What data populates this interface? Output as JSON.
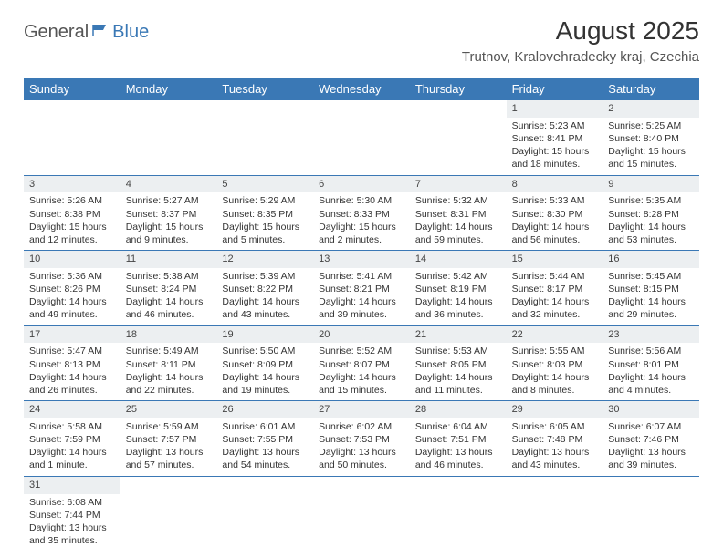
{
  "logo": {
    "part1": "General",
    "part2": "Blue"
  },
  "title": "August 2025",
  "location": "Trutnov, Kralovehradecky kraj, Czechia",
  "colors": {
    "header_bg": "#3a78b5",
    "header_text": "#ffffff",
    "daynum_bg": "#eceff1",
    "border": "#3a78b5",
    "text": "#333333",
    "logo_gray": "#555555",
    "logo_blue": "#3a78b5",
    "background": "#ffffff"
  },
  "dayNames": [
    "Sunday",
    "Monday",
    "Tuesday",
    "Wednesday",
    "Thursday",
    "Friday",
    "Saturday"
  ],
  "weeks": [
    [
      null,
      null,
      null,
      null,
      null,
      {
        "n": "1",
        "sr": "Sunrise: 5:23 AM",
        "ss": "Sunset: 8:41 PM",
        "d1": "Daylight: 15 hours",
        "d2": "and 18 minutes."
      },
      {
        "n": "2",
        "sr": "Sunrise: 5:25 AM",
        "ss": "Sunset: 8:40 PM",
        "d1": "Daylight: 15 hours",
        "d2": "and 15 minutes."
      }
    ],
    [
      {
        "n": "3",
        "sr": "Sunrise: 5:26 AM",
        "ss": "Sunset: 8:38 PM",
        "d1": "Daylight: 15 hours",
        "d2": "and 12 minutes."
      },
      {
        "n": "4",
        "sr": "Sunrise: 5:27 AM",
        "ss": "Sunset: 8:37 PM",
        "d1": "Daylight: 15 hours",
        "d2": "and 9 minutes."
      },
      {
        "n": "5",
        "sr": "Sunrise: 5:29 AM",
        "ss": "Sunset: 8:35 PM",
        "d1": "Daylight: 15 hours",
        "d2": "and 5 minutes."
      },
      {
        "n": "6",
        "sr": "Sunrise: 5:30 AM",
        "ss": "Sunset: 8:33 PM",
        "d1": "Daylight: 15 hours",
        "d2": "and 2 minutes."
      },
      {
        "n": "7",
        "sr": "Sunrise: 5:32 AM",
        "ss": "Sunset: 8:31 PM",
        "d1": "Daylight: 14 hours",
        "d2": "and 59 minutes."
      },
      {
        "n": "8",
        "sr": "Sunrise: 5:33 AM",
        "ss": "Sunset: 8:30 PM",
        "d1": "Daylight: 14 hours",
        "d2": "and 56 minutes."
      },
      {
        "n": "9",
        "sr": "Sunrise: 5:35 AM",
        "ss": "Sunset: 8:28 PM",
        "d1": "Daylight: 14 hours",
        "d2": "and 53 minutes."
      }
    ],
    [
      {
        "n": "10",
        "sr": "Sunrise: 5:36 AM",
        "ss": "Sunset: 8:26 PM",
        "d1": "Daylight: 14 hours",
        "d2": "and 49 minutes."
      },
      {
        "n": "11",
        "sr": "Sunrise: 5:38 AM",
        "ss": "Sunset: 8:24 PM",
        "d1": "Daylight: 14 hours",
        "d2": "and 46 minutes."
      },
      {
        "n": "12",
        "sr": "Sunrise: 5:39 AM",
        "ss": "Sunset: 8:22 PM",
        "d1": "Daylight: 14 hours",
        "d2": "and 43 minutes."
      },
      {
        "n": "13",
        "sr": "Sunrise: 5:41 AM",
        "ss": "Sunset: 8:21 PM",
        "d1": "Daylight: 14 hours",
        "d2": "and 39 minutes."
      },
      {
        "n": "14",
        "sr": "Sunrise: 5:42 AM",
        "ss": "Sunset: 8:19 PM",
        "d1": "Daylight: 14 hours",
        "d2": "and 36 minutes."
      },
      {
        "n": "15",
        "sr": "Sunrise: 5:44 AM",
        "ss": "Sunset: 8:17 PM",
        "d1": "Daylight: 14 hours",
        "d2": "and 32 minutes."
      },
      {
        "n": "16",
        "sr": "Sunrise: 5:45 AM",
        "ss": "Sunset: 8:15 PM",
        "d1": "Daylight: 14 hours",
        "d2": "and 29 minutes."
      }
    ],
    [
      {
        "n": "17",
        "sr": "Sunrise: 5:47 AM",
        "ss": "Sunset: 8:13 PM",
        "d1": "Daylight: 14 hours",
        "d2": "and 26 minutes."
      },
      {
        "n": "18",
        "sr": "Sunrise: 5:49 AM",
        "ss": "Sunset: 8:11 PM",
        "d1": "Daylight: 14 hours",
        "d2": "and 22 minutes."
      },
      {
        "n": "19",
        "sr": "Sunrise: 5:50 AM",
        "ss": "Sunset: 8:09 PM",
        "d1": "Daylight: 14 hours",
        "d2": "and 19 minutes."
      },
      {
        "n": "20",
        "sr": "Sunrise: 5:52 AM",
        "ss": "Sunset: 8:07 PM",
        "d1": "Daylight: 14 hours",
        "d2": "and 15 minutes."
      },
      {
        "n": "21",
        "sr": "Sunrise: 5:53 AM",
        "ss": "Sunset: 8:05 PM",
        "d1": "Daylight: 14 hours",
        "d2": "and 11 minutes."
      },
      {
        "n": "22",
        "sr": "Sunrise: 5:55 AM",
        "ss": "Sunset: 8:03 PM",
        "d1": "Daylight: 14 hours",
        "d2": "and 8 minutes."
      },
      {
        "n": "23",
        "sr": "Sunrise: 5:56 AM",
        "ss": "Sunset: 8:01 PM",
        "d1": "Daylight: 14 hours",
        "d2": "and 4 minutes."
      }
    ],
    [
      {
        "n": "24",
        "sr": "Sunrise: 5:58 AM",
        "ss": "Sunset: 7:59 PM",
        "d1": "Daylight: 14 hours",
        "d2": "and 1 minute."
      },
      {
        "n": "25",
        "sr": "Sunrise: 5:59 AM",
        "ss": "Sunset: 7:57 PM",
        "d1": "Daylight: 13 hours",
        "d2": "and 57 minutes."
      },
      {
        "n": "26",
        "sr": "Sunrise: 6:01 AM",
        "ss": "Sunset: 7:55 PM",
        "d1": "Daylight: 13 hours",
        "d2": "and 54 minutes."
      },
      {
        "n": "27",
        "sr": "Sunrise: 6:02 AM",
        "ss": "Sunset: 7:53 PM",
        "d1": "Daylight: 13 hours",
        "d2": "and 50 minutes."
      },
      {
        "n": "28",
        "sr": "Sunrise: 6:04 AM",
        "ss": "Sunset: 7:51 PM",
        "d1": "Daylight: 13 hours",
        "d2": "and 46 minutes."
      },
      {
        "n": "29",
        "sr": "Sunrise: 6:05 AM",
        "ss": "Sunset: 7:48 PM",
        "d1": "Daylight: 13 hours",
        "d2": "and 43 minutes."
      },
      {
        "n": "30",
        "sr": "Sunrise: 6:07 AM",
        "ss": "Sunset: 7:46 PM",
        "d1": "Daylight: 13 hours",
        "d2": "and 39 minutes."
      }
    ],
    [
      {
        "n": "31",
        "sr": "Sunrise: 6:08 AM",
        "ss": "Sunset: 7:44 PM",
        "d1": "Daylight: 13 hours",
        "d2": "and 35 minutes."
      },
      null,
      null,
      null,
      null,
      null,
      null
    ]
  ]
}
